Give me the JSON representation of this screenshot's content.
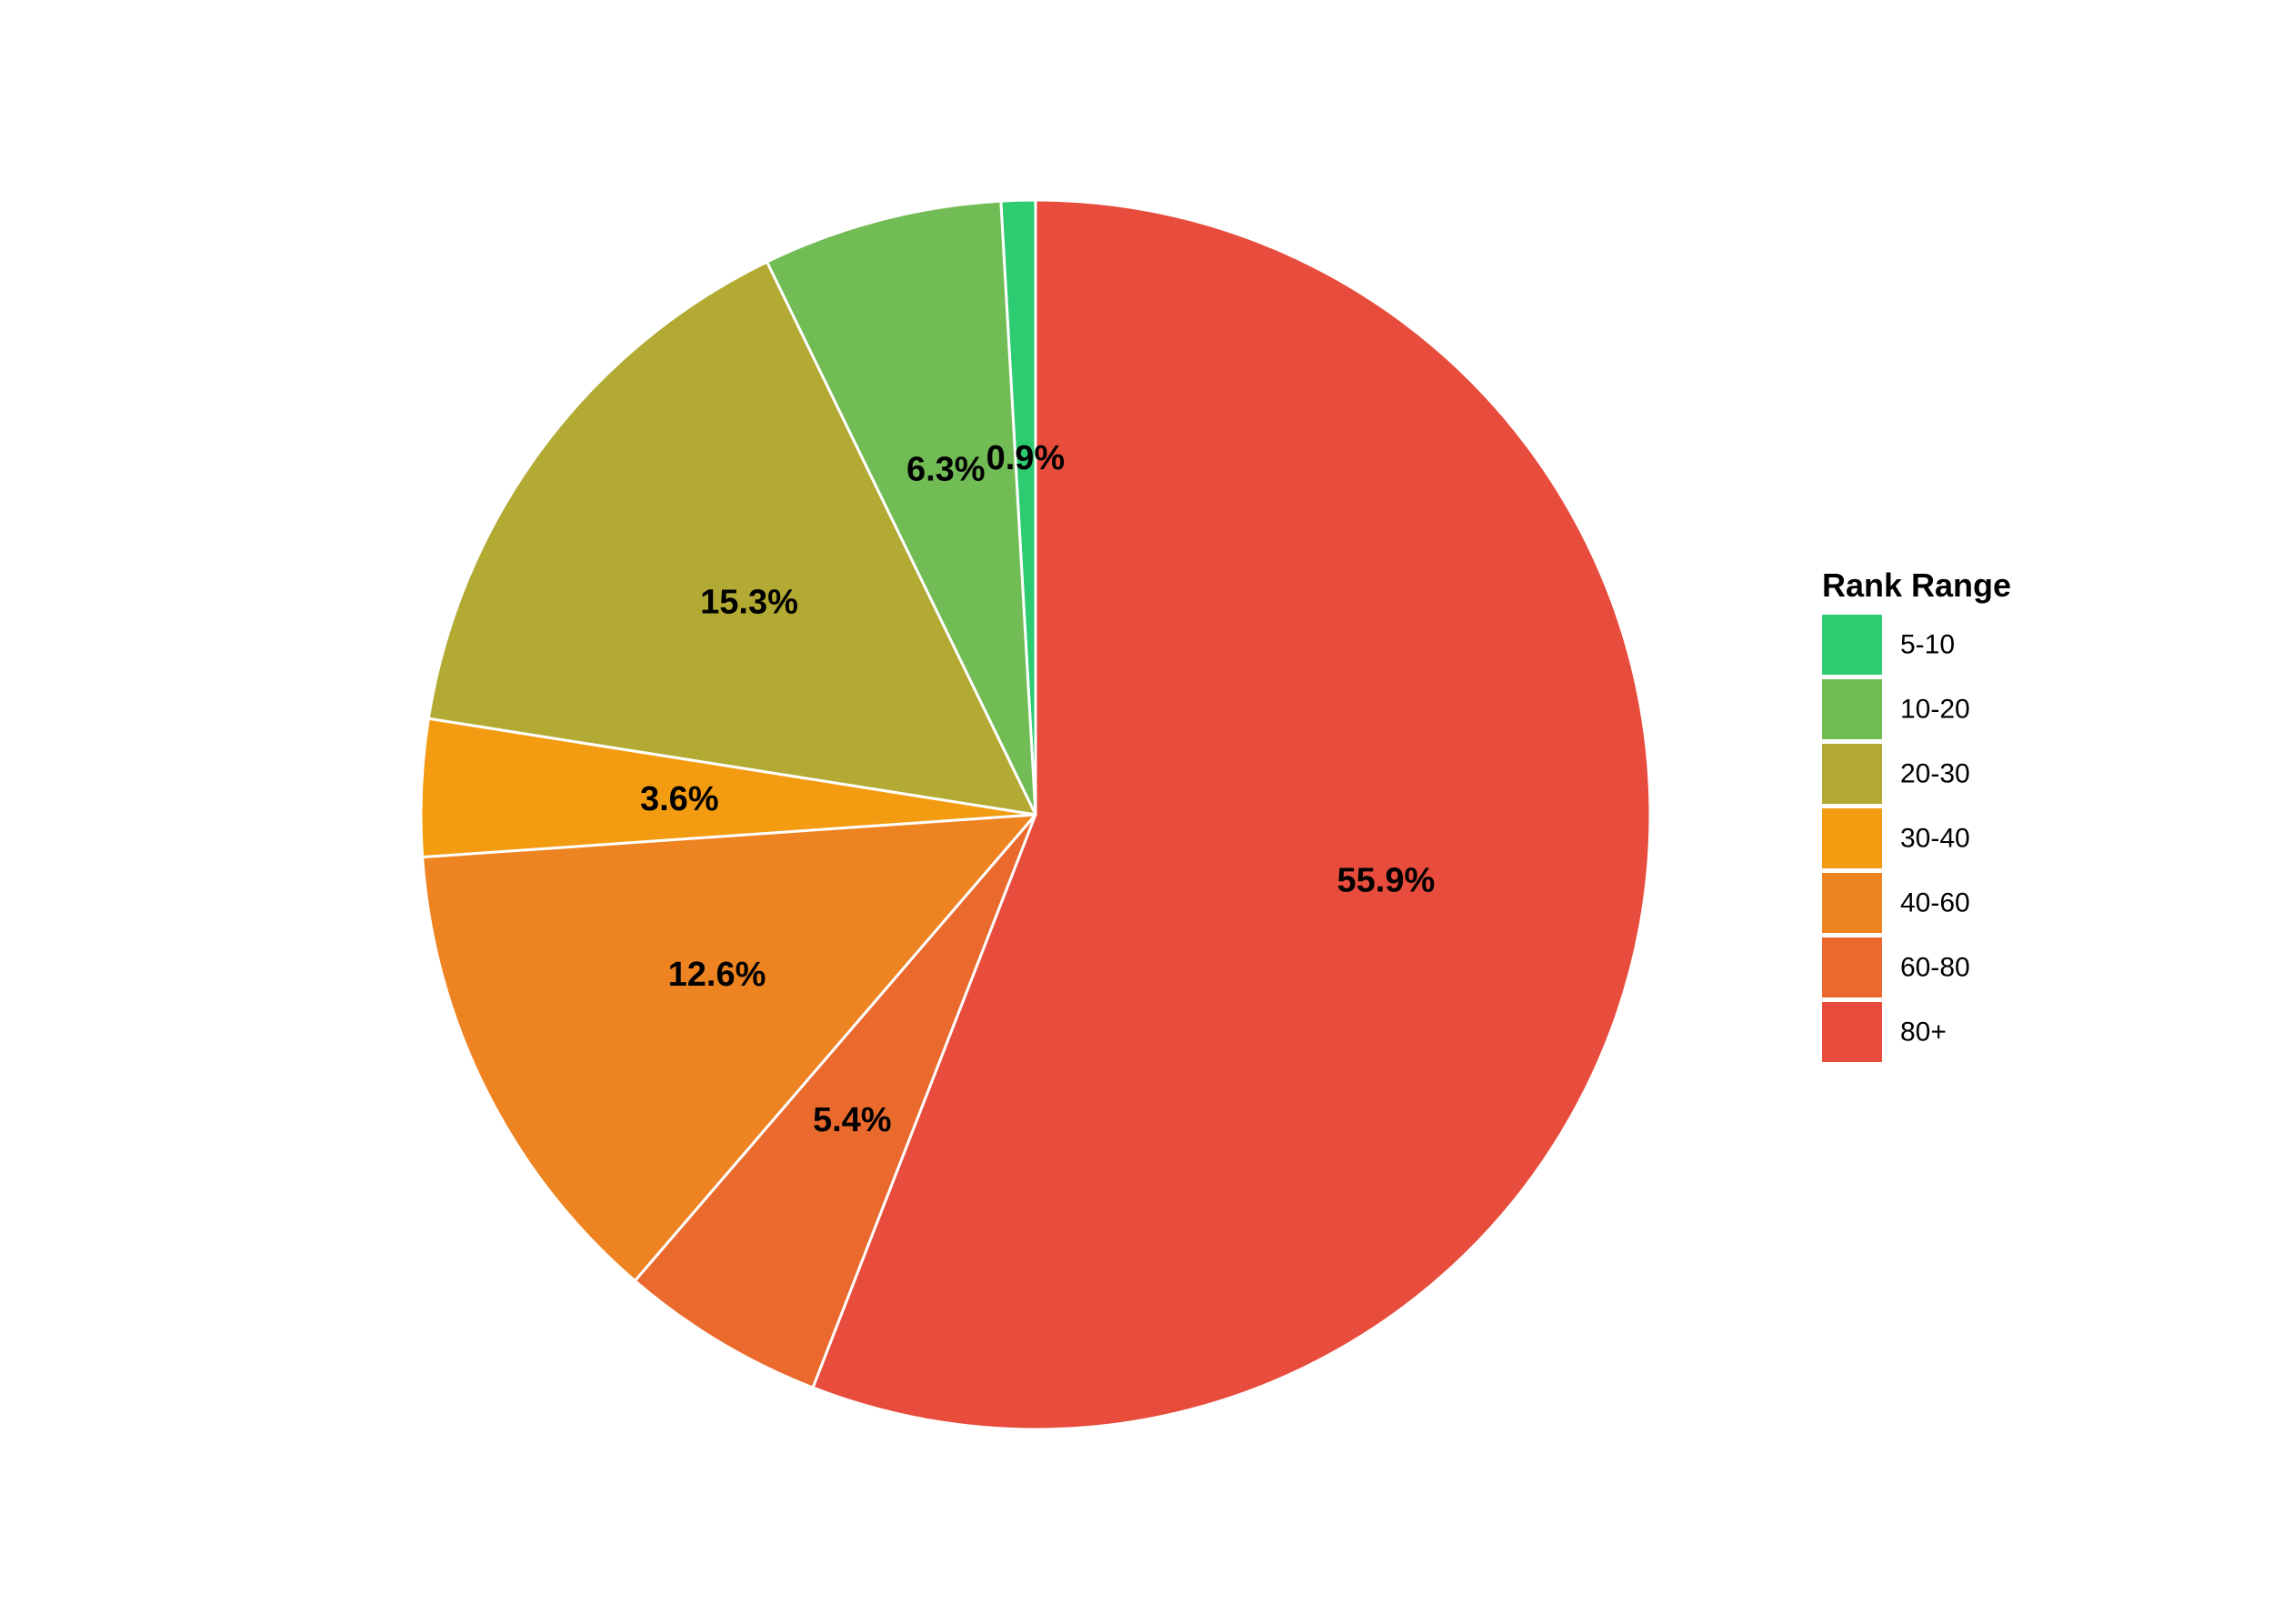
{
  "chart_data": {
    "type": "pie",
    "legend_title": "Rank Range",
    "legend_position": "right",
    "start_angle": "12 o'clock",
    "direction": "counter-clockwise",
    "slices": [
      {
        "label": "5-10",
        "value": 0.9,
        "value_label": "0.9%",
        "color": "#2ecc71"
      },
      {
        "label": "10-20",
        "value": 6.3,
        "value_label": "6.3%",
        "color": "#72bc55"
      },
      {
        "label": "20-30",
        "value": 15.3,
        "value_label": "15.3%",
        "color": "#b2aa33"
      },
      {
        "label": "30-40",
        "value": 3.6,
        "value_label": "3.6%",
        "color": "#f39c12"
      },
      {
        "label": "40-60",
        "value": 12.6,
        "value_label": "12.6%",
        "color": "#ee8322"
      },
      {
        "label": "60-80",
        "value": 5.4,
        "value_label": "5.4%",
        "color": "#ea6a2e"
      },
      {
        "label": "80+",
        "value": 55.9,
        "value_label": "55.9%",
        "color": "#e74c3c"
      }
    ]
  }
}
